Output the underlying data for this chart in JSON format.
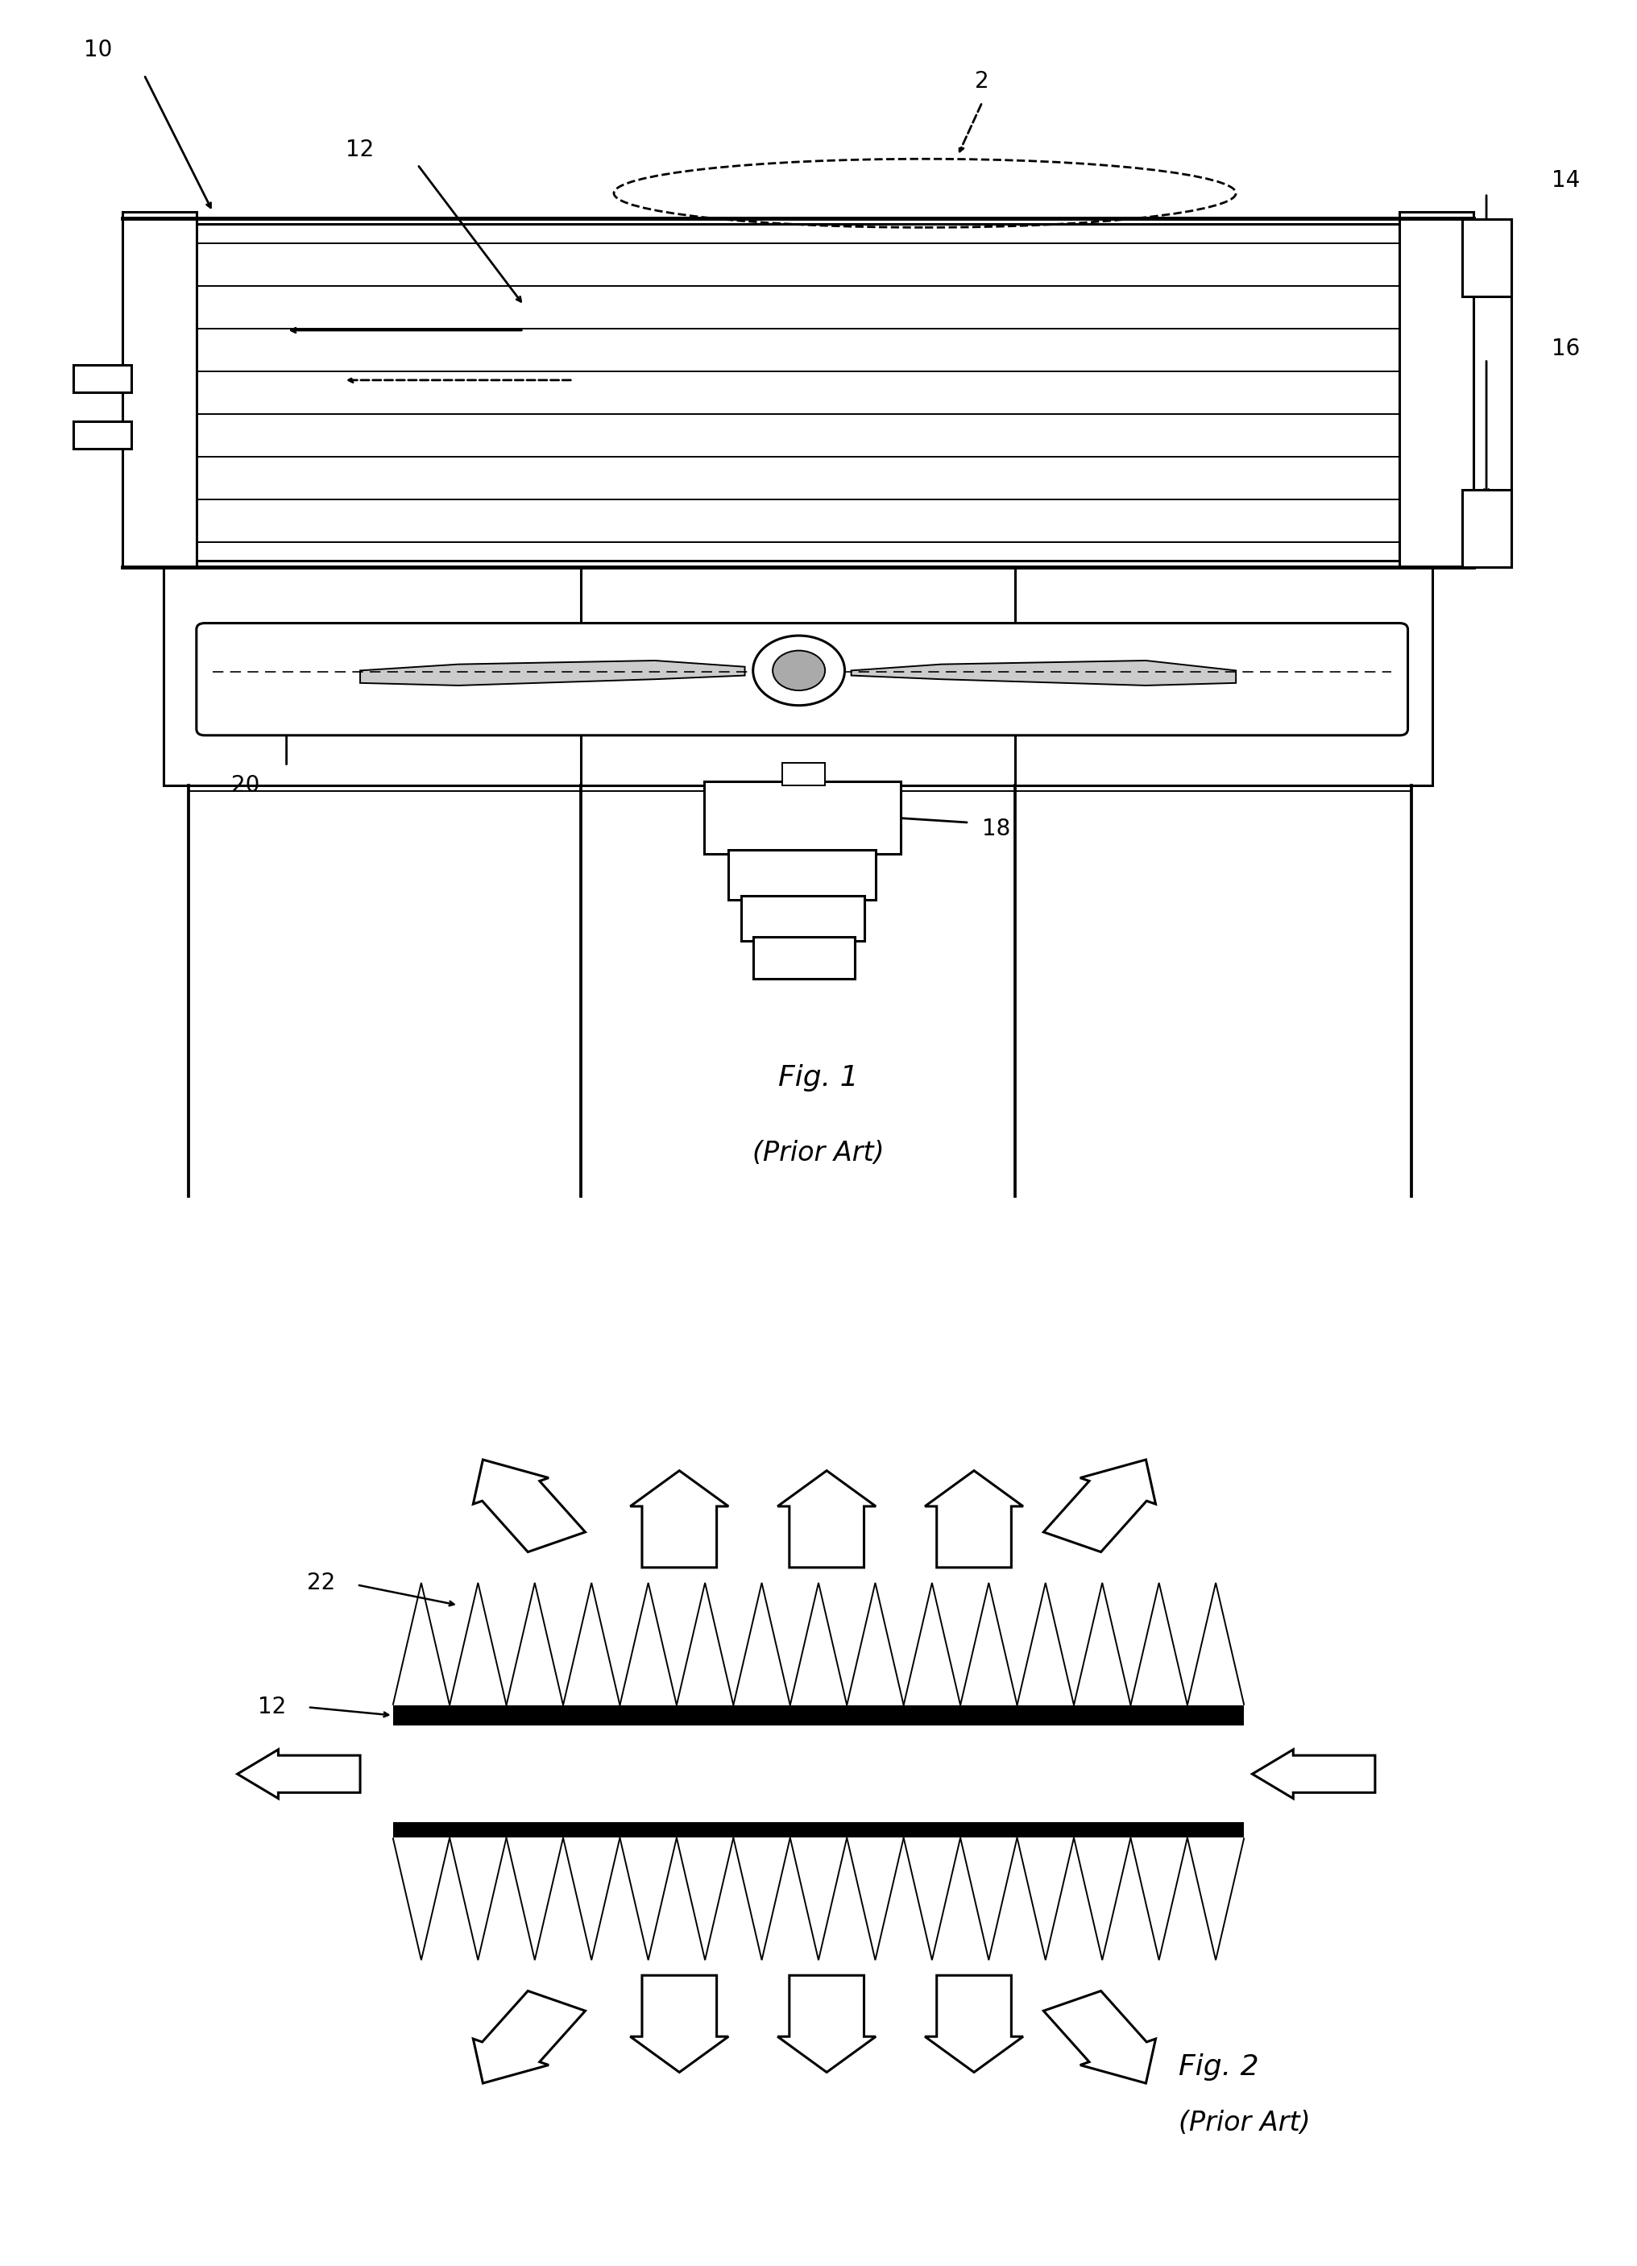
{
  "bg_color": "#ffffff",
  "line_color": "#000000",
  "fig1_title": "Fig. 1",
  "fig1_subtitle": "(Prior Art)",
  "fig2_title": "Fig. 2",
  "fig2_subtitle": "(Prior Art)",
  "lw_main": 2.2,
  "lw_thin": 1.4,
  "lw_thick": 3.5,
  "label_fs": 20,
  "title_fs": 26
}
